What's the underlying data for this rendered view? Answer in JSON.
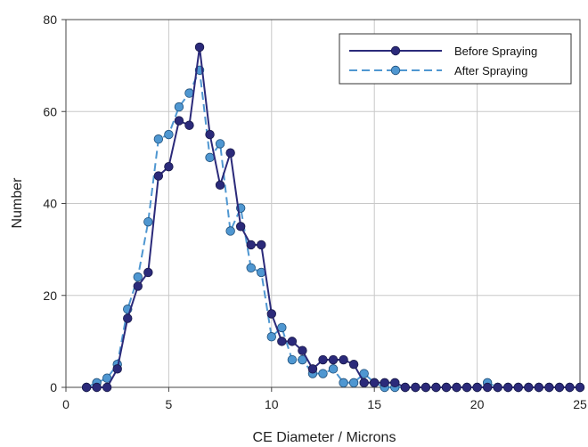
{
  "chart_data": {
    "type": "line",
    "xlabel": "CE Diameter / Microns",
    "ylabel": "Number",
    "xlim": [
      0,
      25
    ],
    "ylim": [
      0,
      80
    ],
    "xticks": [
      0,
      5,
      10,
      15,
      20,
      25
    ],
    "yticks": [
      0,
      20,
      40,
      60,
      80
    ],
    "grid": true,
    "legend_position": "top-right",
    "series": [
      {
        "name": "Before Spraying",
        "color": "#2b2a7a",
        "dash": "solid",
        "x": [
          1.0,
          1.5,
          2.0,
          2.5,
          3.0,
          3.5,
          4.0,
          4.5,
          5.0,
          5.5,
          6.0,
          6.5,
          7.0,
          7.5,
          8.0,
          8.5,
          9.0,
          9.5,
          10.0,
          10.5,
          11.0,
          11.5,
          12.0,
          12.5,
          13.0,
          13.5,
          14.0,
          14.5,
          15.0,
          15.5,
          16.0,
          16.5,
          17.0,
          17.5,
          18.0,
          18.5,
          19.0,
          19.5,
          20.0,
          20.5,
          21.0,
          21.5,
          22.0,
          22.5,
          23.0,
          23.5,
          24.0,
          24.5,
          25.0
        ],
        "y": [
          0,
          0,
          0,
          4,
          15,
          22,
          25,
          46,
          48,
          58,
          57,
          74,
          55,
          44,
          51,
          35,
          31,
          31,
          16,
          10,
          10,
          8,
          4,
          6,
          6,
          6,
          5,
          1,
          1,
          1,
          1,
          0,
          0,
          0,
          0,
          0,
          0,
          0,
          0,
          0,
          0,
          0,
          0,
          0,
          0,
          0,
          0,
          0,
          0
        ]
      },
      {
        "name": "After Spraying",
        "color": "#4f97d1",
        "dash": "dashed",
        "x": [
          1.0,
          1.5,
          2.0,
          2.5,
          3.0,
          3.5,
          4.0,
          4.5,
          5.0,
          5.5,
          6.0,
          6.5,
          7.0,
          7.5,
          8.0,
          8.5,
          9.0,
          9.5,
          10.0,
          10.5,
          11.0,
          11.5,
          12.0,
          12.5,
          13.0,
          13.5,
          14.0,
          14.5,
          15.0,
          15.5,
          16.0,
          16.5,
          17.0,
          17.5,
          18.0,
          18.5,
          19.0,
          19.5,
          20.0,
          20.5,
          21.0,
          21.5,
          22.0,
          22.5,
          23.0,
          23.5,
          24.0,
          24.5,
          25.0
        ],
        "y": [
          0,
          1,
          2,
          5,
          17,
          24,
          36,
          54,
          55,
          61,
          64,
          69,
          50,
          53,
          34,
          39,
          26,
          25,
          11,
          13,
          6,
          6,
          3,
          3,
          4,
          1,
          1,
          3,
          1,
          0,
          0,
          0,
          0,
          0,
          0,
          0,
          0,
          0,
          0,
          1,
          0,
          0,
          0,
          0,
          0,
          0,
          0,
          0,
          0
        ]
      }
    ]
  }
}
